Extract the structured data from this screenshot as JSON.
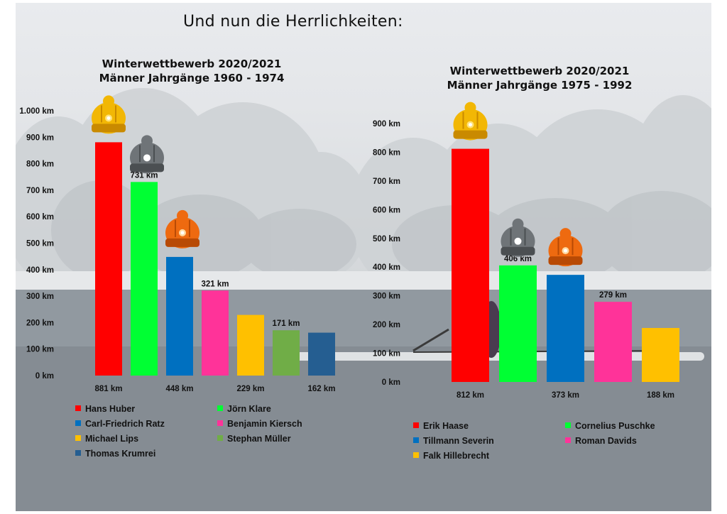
{
  "page": {
    "title": "Und nun die Herrlichkeiten:"
  },
  "chart_data": [
    {
      "type": "bar",
      "title": "Winterwettbewerb 2020/2021",
      "subtitle": "Männer  Jahrgänge 1960 - 1974",
      "unit": "km",
      "ylim": [
        0,
        1000
      ],
      "y_ticks": [
        "0 km",
        "100 km",
        "200 km",
        "300 km",
        "400 km",
        "500 km",
        "600 km",
        "700 km",
        "800 km",
        "900 km",
        "1.000 km"
      ],
      "grid": false,
      "legend_position": "bottom",
      "series": [
        {
          "name": "Hans  Huber",
          "value": 881,
          "label": "881 km",
          "color": "#ff0000"
        },
        {
          "name": "Jörn Klare",
          "value": 731,
          "label": "731 km",
          "color": "#00ff33"
        },
        {
          "name": "Carl-Friedrich Ratz",
          "value": 448,
          "label": "448 km",
          "color": "#0070c0"
        },
        {
          "name": "Benjamin Kiersch",
          "value": 321,
          "label": "321 km",
          "color": "#ff3399"
        },
        {
          "name": "Michael Lips",
          "value": 229,
          "label": "229 km",
          "color": "#ffc000"
        },
        {
          "name": "Stephan Müller",
          "value": 171,
          "label": "171 km",
          "color": "#70ad47"
        },
        {
          "name": "Thomas Krumrei",
          "value": 162,
          "label": "162 km",
          "color": "#255e91"
        }
      ],
      "medals": [
        "gold",
        "silver",
        "bronze"
      ]
    },
    {
      "type": "bar",
      "title": "Winterwettbewerb 2020/2021",
      "subtitle": "Männer  Jahrgänge 1975 - 1992",
      "unit": "km",
      "ylim": [
        0,
        900
      ],
      "y_ticks": [
        "0 km",
        "100 km",
        "200 km",
        "300 km",
        "400 km",
        "500 km",
        "600 km",
        "700 km",
        "800 km",
        "900 km"
      ],
      "grid": false,
      "legend_position": "bottom",
      "series": [
        {
          "name": "Erik Haase",
          "value": 812,
          "label": "812 km",
          "color": "#ff0000"
        },
        {
          "name": "Cornelius Puschke",
          "value": 406,
          "label": "406 km",
          "color": "#00ff33"
        },
        {
          "name": "Tillmann Severin",
          "value": 373,
          "label": "373 km",
          "color": "#0070c0"
        },
        {
          "name": "Roman Davids",
          "value": 279,
          "label": "279 km",
          "color": "#ff3399"
        },
        {
          "name": "Falk Hillebrecht",
          "value": 188,
          "label": "188 km",
          "color": "#ffc000"
        }
      ],
      "medals": [
        "gold",
        "silver",
        "bronze"
      ]
    }
  ]
}
